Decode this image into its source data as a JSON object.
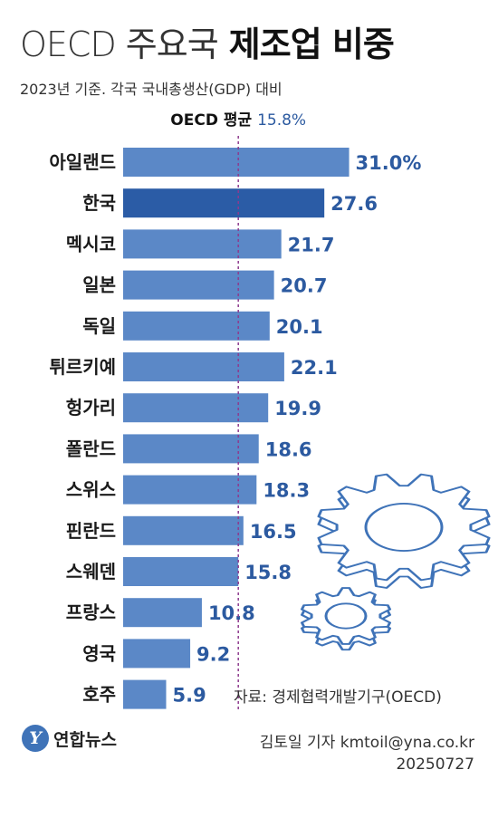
{
  "header": {
    "title_light": "OECD 주요국",
    "title_bold": "제조업 비중",
    "subtitle": "2023년 기준. 각국 국내총생산(GDP) 대비"
  },
  "footer": {
    "source": "자료: 경제협력개발기구(OECD)",
    "byline": "김토일 기자 kmtoil@yna.co.kr",
    "date": "20250727",
    "logo_text": "연합뉴스",
    "logo_letter": "Y"
  },
  "colors": {
    "bar": "#5b88c7",
    "highlight": "#2b5ca6",
    "value_text": "#2c5aa0",
    "avg_line": "#8e3a8e",
    "gear_stroke": "#3f73b8",
    "gear_fill": "#ffffff"
  },
  "chart_data": {
    "type": "bar",
    "orientation": "horizontal",
    "unit": "%",
    "categories": [
      "아일랜드",
      "한국",
      "멕시코",
      "일본",
      "독일",
      "튀르키예",
      "헝가리",
      "폴란드",
      "스위스",
      "핀란드",
      "스웨덴",
      "프랑스",
      "영국",
      "호주"
    ],
    "value_labels": [
      "31.0%",
      "27.6",
      "21.7",
      "20.7",
      "20.1",
      "22.1",
      "19.9",
      "18.6",
      "18.3",
      "16.5",
      "15.8",
      "10.8",
      "9.2",
      "5.9"
    ],
    "values": [
      31.0,
      27.6,
      21.7,
      20.7,
      20.1,
      22.1,
      19.9,
      18.6,
      18.3,
      16.5,
      15.8,
      10.8,
      9.2,
      5.9
    ],
    "highlight_index": 1,
    "reference_line": {
      "label": "OECD 평균",
      "value_label": "15.8%",
      "value": 15.8
    }
  }
}
